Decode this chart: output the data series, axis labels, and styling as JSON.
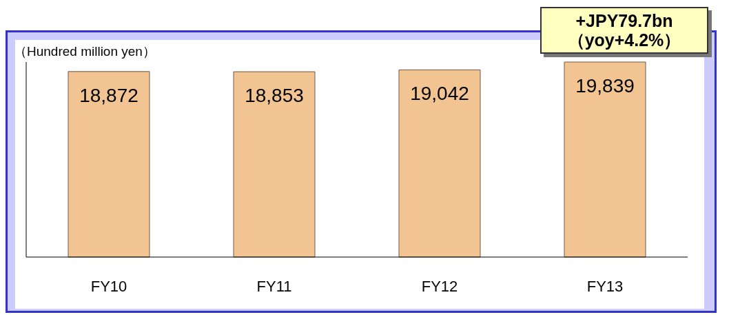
{
  "chart_data": {
    "type": "bar",
    "ylabel": "（Hundred million yen）",
    "categories": [
      "FY10",
      "FY11",
      "FY12",
      "FY13"
    ],
    "values": [
      18872,
      18853,
      19042,
      19839
    ],
    "color": "#f2c491",
    "value_labels": [
      "18,872",
      "18,853",
      "19,042",
      "19,839"
    ],
    "grid": false,
    "annotations": [
      "+JPY79.7bn\n（yoy+4.2%）"
    ]
  }
}
